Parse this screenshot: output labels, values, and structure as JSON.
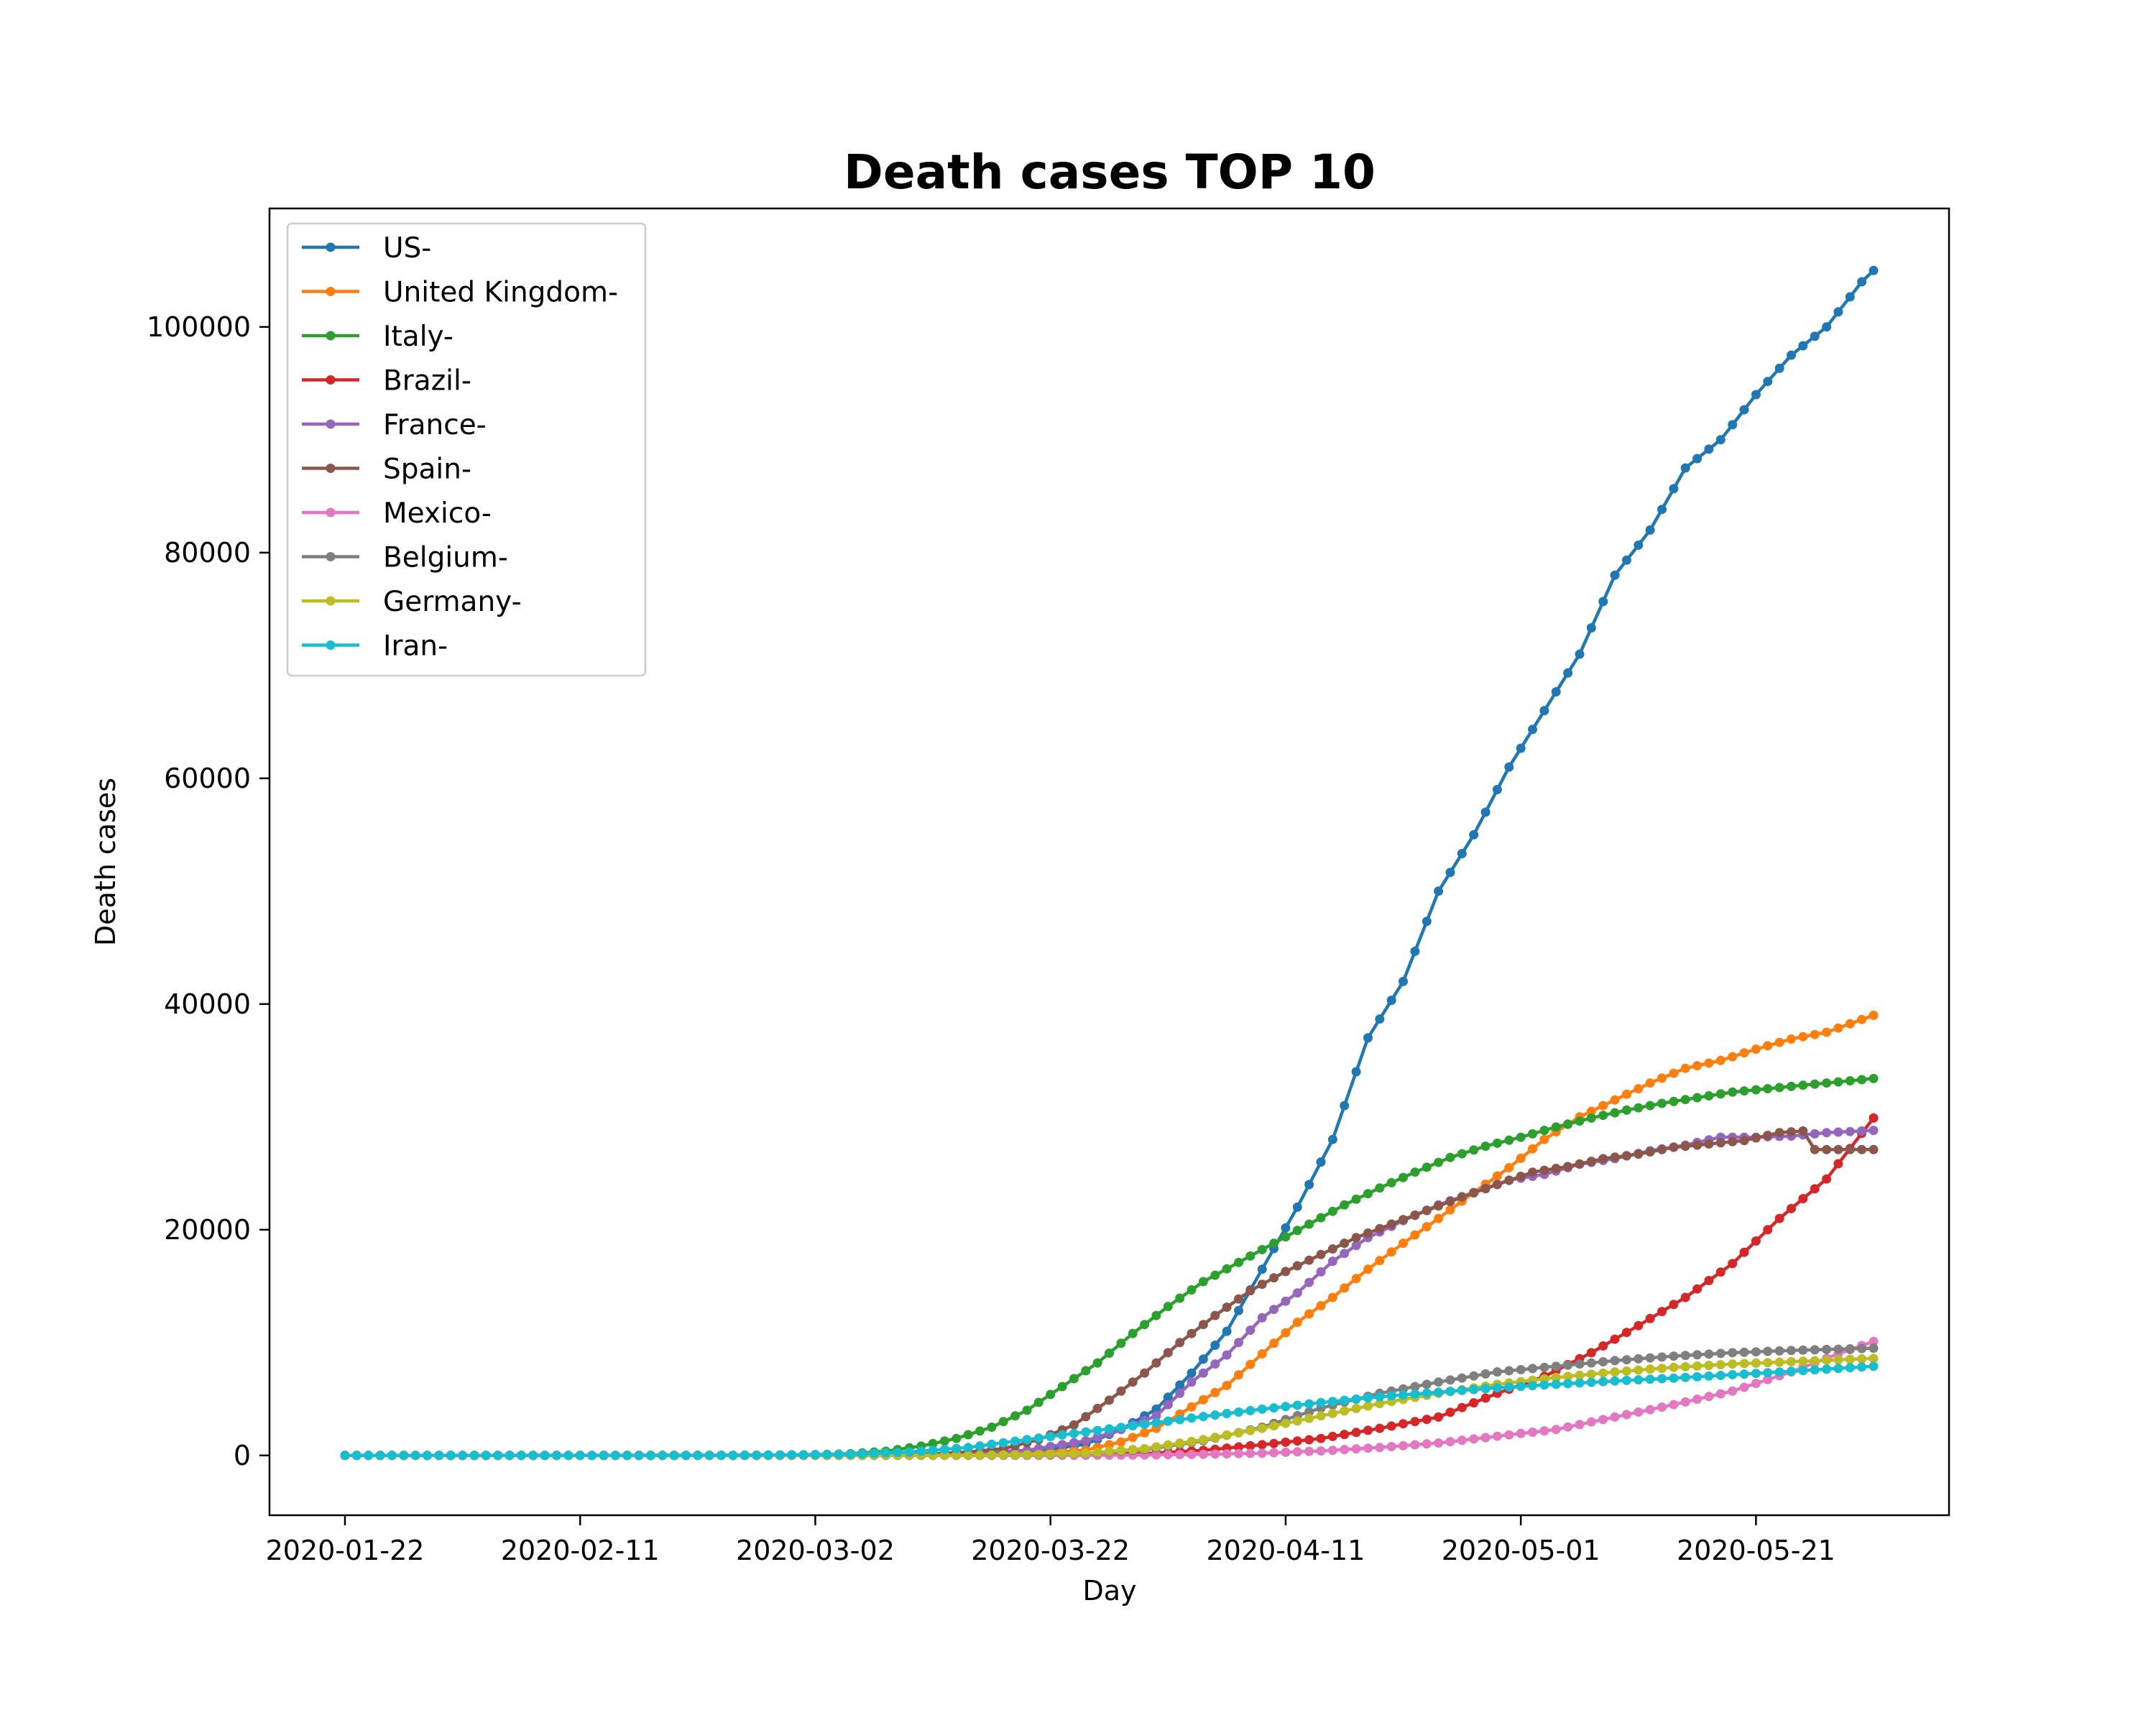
{
  "chart_data": {
    "type": "line",
    "title": "Death cases TOP 10",
    "xlabel": "Day",
    "ylabel": "Death cases",
    "x_start": "2020-01-22",
    "x_end": "2020-05-31",
    "x_ticks": [
      "2020-01-22",
      "2020-02-11",
      "2020-03-02",
      "2020-03-22",
      "2020-04-11",
      "2020-05-01",
      "2020-05-21"
    ],
    "y_ticks": [
      0,
      20000,
      40000,
      60000,
      80000,
      100000
    ],
    "ylim": [
      -5300,
      110500
    ],
    "grid": false,
    "legend_position": "top-left",
    "series": [
      {
        "name": "US-",
        "color": "#1f77b4",
        "points": [
          [
            "2020-01-22",
            0
          ],
          [
            "2020-03-01",
            1
          ],
          [
            "2020-03-10",
            30
          ],
          [
            "2020-03-20",
            250
          ],
          [
            "2020-03-25",
            1000
          ],
          [
            "2020-03-28",
            2300
          ],
          [
            "2020-03-31",
            4100
          ],
          [
            "2020-04-03",
            7300
          ],
          [
            "2020-04-06",
            11000
          ],
          [
            "2020-04-09",
            16500
          ],
          [
            "2020-04-12",
            22000
          ],
          [
            "2020-04-15",
            28000
          ],
          [
            "2020-04-18",
            37000
          ],
          [
            "2020-04-21",
            42000
          ],
          [
            "2020-04-24",
            50000
          ],
          [
            "2020-04-27",
            55000
          ],
          [
            "2020-04-30",
            61000
          ],
          [
            "2020-05-03",
            66000
          ],
          [
            "2020-05-06",
            71000
          ],
          [
            "2020-05-09",
            78000
          ],
          [
            "2020-05-12",
            82000
          ],
          [
            "2020-05-15",
            87500
          ],
          [
            "2020-05-18",
            90000
          ],
          [
            "2020-05-21",
            94000
          ],
          [
            "2020-05-24",
            97500
          ],
          [
            "2020-05-27",
            100000
          ],
          [
            "2020-05-30",
            104000
          ],
          [
            "2020-05-31",
            105000
          ]
        ]
      },
      {
        "name": "United Kingdom-",
        "color": "#ff7f0e",
        "points": [
          [
            "2020-01-22",
            0
          ],
          [
            "2020-03-10",
            5
          ],
          [
            "2020-03-20",
            170
          ],
          [
            "2020-03-25",
            470
          ],
          [
            "2020-03-28",
            1200
          ],
          [
            "2020-03-31",
            2400
          ],
          [
            "2020-04-03",
            4300
          ],
          [
            "2020-04-06",
            6200
          ],
          [
            "2020-04-09",
            9000
          ],
          [
            "2020-04-12",
            11800
          ],
          [
            "2020-04-15",
            14000
          ],
          [
            "2020-04-18",
            16500
          ],
          [
            "2020-04-21",
            18800
          ],
          [
            "2020-04-24",
            21000
          ],
          [
            "2020-04-27",
            23300
          ],
          [
            "2020-04-30",
            25500
          ],
          [
            "2020-05-03",
            28000
          ],
          [
            "2020-05-06",
            30000
          ],
          [
            "2020-05-09",
            31500
          ],
          [
            "2020-05-12",
            33000
          ],
          [
            "2020-05-15",
            34300
          ],
          [
            "2020-05-18",
            35000
          ],
          [
            "2020-05-21",
            36000
          ],
          [
            "2020-05-24",
            36900
          ],
          [
            "2020-05-27",
            37500
          ],
          [
            "2020-05-31",
            39000
          ]
        ]
      },
      {
        "name": "Italy-",
        "color": "#2ca02c",
        "points": [
          [
            "2020-01-22",
            0
          ],
          [
            "2020-02-22",
            1
          ],
          [
            "2020-03-01",
            40
          ],
          [
            "2020-03-05",
            150
          ],
          [
            "2020-03-08",
            370
          ],
          [
            "2020-03-11",
            830
          ],
          [
            "2020-03-14",
            1500
          ],
          [
            "2020-03-17",
            2500
          ],
          [
            "2020-03-20",
            4000
          ],
          [
            "2020-03-23",
            6100
          ],
          [
            "2020-03-26",
            8200
          ],
          [
            "2020-03-29",
            10800
          ],
          [
            "2020-04-01",
            13200
          ],
          [
            "2020-04-04",
            15400
          ],
          [
            "2020-04-07",
            17100
          ],
          [
            "2020-04-10",
            18800
          ],
          [
            "2020-04-13",
            20500
          ],
          [
            "2020-04-16",
            22200
          ],
          [
            "2020-04-19",
            23700
          ],
          [
            "2020-04-22",
            25100
          ],
          [
            "2020-04-25",
            26400
          ],
          [
            "2020-04-28",
            27400
          ],
          [
            "2020-05-01",
            28200
          ],
          [
            "2020-05-04",
            29100
          ],
          [
            "2020-05-07",
            29900
          ],
          [
            "2020-05-10",
            30600
          ],
          [
            "2020-05-13",
            31200
          ],
          [
            "2020-05-16",
            31700
          ],
          [
            "2020-05-19",
            32200
          ],
          [
            "2020-05-22",
            32500
          ],
          [
            "2020-05-25",
            32800
          ],
          [
            "2020-05-28",
            33100
          ],
          [
            "2020-05-31",
            33400
          ]
        ]
      },
      {
        "name": "Brazil-",
        "color": "#d62728",
        "points": [
          [
            "2020-01-22",
            0
          ],
          [
            "2020-03-20",
            10
          ],
          [
            "2020-03-25",
            60
          ],
          [
            "2020-03-30",
            160
          ],
          [
            "2020-04-04",
            450
          ],
          [
            "2020-04-09",
            950
          ],
          [
            "2020-04-14",
            1500
          ],
          [
            "2020-04-19",
            2400
          ],
          [
            "2020-04-24",
            3400
          ],
          [
            "2020-04-29",
            5500
          ],
          [
            "2020-05-03",
            7000
          ],
          [
            "2020-05-07",
            9100
          ],
          [
            "2020-05-11",
            11500
          ],
          [
            "2020-05-15",
            14000
          ],
          [
            "2020-05-19",
            17000
          ],
          [
            "2020-05-23",
            21000
          ],
          [
            "2020-05-27",
            24500
          ],
          [
            "2020-05-31",
            29900
          ]
        ]
      },
      {
        "name": "France-",
        "color": "#9467bd",
        "points": [
          [
            "2020-01-22",
            0
          ],
          [
            "2020-03-10",
            30
          ],
          [
            "2020-03-20",
            450
          ],
          [
            "2020-03-25",
            1300
          ],
          [
            "2020-03-28",
            2300
          ],
          [
            "2020-03-31",
            3500
          ],
          [
            "2020-04-03",
            6500
          ],
          [
            "2020-04-06",
            8900
          ],
          [
            "2020-04-09",
            12200
          ],
          [
            "2020-04-12",
            14400
          ],
          [
            "2020-04-15",
            17200
          ],
          [
            "2020-04-18",
            19300
          ],
          [
            "2020-04-21",
            20800
          ],
          [
            "2020-04-24",
            22200
          ],
          [
            "2020-04-27",
            23300
          ],
          [
            "2020-04-30",
            24400
          ],
          [
            "2020-05-03",
            24900
          ],
          [
            "2020-05-06",
            25800
          ],
          [
            "2020-05-09",
            26300
          ],
          [
            "2020-05-12",
            27000
          ],
          [
            "2020-05-15",
            27500
          ],
          [
            "2020-05-18",
            28200
          ],
          [
            "2020-05-21",
            28200
          ],
          [
            "2020-05-24",
            28300
          ],
          [
            "2020-05-27",
            28600
          ],
          [
            "2020-05-31",
            28800
          ]
        ]
      },
      {
        "name": "Spain-",
        "color": "#8c564b",
        "points": [
          [
            "2020-01-22",
            0
          ],
          [
            "2020-03-05",
            3
          ],
          [
            "2020-03-10",
            35
          ],
          [
            "2020-03-15",
            300
          ],
          [
            "2020-03-18",
            600
          ],
          [
            "2020-03-21",
            1400
          ],
          [
            "2020-03-24",
            2700
          ],
          [
            "2020-03-27",
            4900
          ],
          [
            "2020-03-30",
            7300
          ],
          [
            "2020-04-02",
            10000
          ],
          [
            "2020-04-05",
            12400
          ],
          [
            "2020-04-08",
            14600
          ],
          [
            "2020-04-11",
            16300
          ],
          [
            "2020-04-14",
            17800
          ],
          [
            "2020-04-17",
            19300
          ],
          [
            "2020-04-20",
            20500
          ],
          [
            "2020-04-23",
            21700
          ],
          [
            "2020-04-26",
            22900
          ],
          [
            "2020-04-29",
            24000
          ],
          [
            "2020-05-02",
            25100
          ],
          [
            "2020-05-05",
            25600
          ],
          [
            "2020-05-08",
            26300
          ],
          [
            "2020-05-11",
            26700
          ],
          [
            "2020-05-14",
            27300
          ],
          [
            "2020-05-17",
            27600
          ],
          [
            "2020-05-20",
            27900
          ],
          [
            "2020-05-23",
            28600
          ],
          [
            "2020-05-25",
            28750
          ],
          [
            "2020-05-26",
            27100
          ],
          [
            "2020-05-31",
            27100
          ]
        ]
      },
      {
        "name": "Mexico-",
        "color": "#e377c2",
        "points": [
          [
            "2020-01-22",
            0
          ],
          [
            "2020-03-25",
            10
          ],
          [
            "2020-03-30",
            40
          ],
          [
            "2020-04-04",
            100
          ],
          [
            "2020-04-09",
            200
          ],
          [
            "2020-04-14",
            400
          ],
          [
            "2020-04-19",
            700
          ],
          [
            "2020-04-24",
            1100
          ],
          [
            "2020-04-29",
            1700
          ],
          [
            "2020-05-04",
            2300
          ],
          [
            "2020-05-09",
            3400
          ],
          [
            "2020-05-14",
            4500
          ],
          [
            "2020-05-19",
            5700
          ],
          [
            "2020-05-24",
            7400
          ],
          [
            "2020-05-28",
            9000
          ],
          [
            "2020-05-31",
            10100
          ]
        ]
      },
      {
        "name": "Belgium-",
        "color": "#7f7f7f",
        "points": [
          [
            "2020-01-22",
            0
          ],
          [
            "2020-03-15",
            5
          ],
          [
            "2020-03-20",
            40
          ],
          [
            "2020-03-25",
            180
          ],
          [
            "2020-03-30",
            500
          ],
          [
            "2020-04-04",
            1300
          ],
          [
            "2020-04-09",
            2500
          ],
          [
            "2020-04-14",
            4200
          ],
          [
            "2020-04-19",
            5500
          ],
          [
            "2020-04-24",
            6500
          ],
          [
            "2020-04-29",
            7400
          ],
          [
            "2020-05-04",
            7900
          ],
          [
            "2020-05-09",
            8400
          ],
          [
            "2020-05-14",
            8800
          ],
          [
            "2020-05-19",
            9100
          ],
          [
            "2020-05-24",
            9300
          ],
          [
            "2020-05-31",
            9500
          ]
        ]
      },
      {
        "name": "Germany-",
        "color": "#bcbd22",
        "points": [
          [
            "2020-01-22",
            0
          ],
          [
            "2020-03-15",
            20
          ],
          [
            "2020-03-20",
            70
          ],
          [
            "2020-03-25",
            200
          ],
          [
            "2020-03-30",
            600
          ],
          [
            "2020-04-04",
            1400
          ],
          [
            "2020-04-09",
            2400
          ],
          [
            "2020-04-14",
            3500
          ],
          [
            "2020-04-19",
            4600
          ],
          [
            "2020-04-24",
            5500
          ],
          [
            "2020-04-29",
            6300
          ],
          [
            "2020-05-04",
            6900
          ],
          [
            "2020-05-09",
            7400
          ],
          [
            "2020-05-14",
            7800
          ],
          [
            "2020-05-19",
            8100
          ],
          [
            "2020-05-24",
            8300
          ],
          [
            "2020-05-31",
            8600
          ]
        ]
      },
      {
        "name": "Iran-",
        "color": "#17becf",
        "points": [
          [
            "2020-01-22",
            0
          ],
          [
            "2020-02-20",
            2
          ],
          [
            "2020-02-25",
            16
          ],
          [
            "2020-03-01",
            66
          ],
          [
            "2020-03-05",
            110
          ],
          [
            "2020-03-10",
            300
          ],
          [
            "2020-03-15",
            700
          ],
          [
            "2020-03-20",
            1400
          ],
          [
            "2020-03-25",
            2080
          ],
          [
            "2020-03-30",
            2760
          ],
          [
            "2020-04-04",
            3450
          ],
          [
            "2020-04-09",
            4100
          ],
          [
            "2020-04-14",
            4680
          ],
          [
            "2020-04-19",
            5200
          ],
          [
            "2020-04-24",
            5600
          ],
          [
            "2020-04-29",
            6000
          ],
          [
            "2020-05-04",
            6300
          ],
          [
            "2020-05-09",
            6600
          ],
          [
            "2020-05-14",
            6850
          ],
          [
            "2020-05-19",
            7150
          ],
          [
            "2020-05-24",
            7450
          ],
          [
            "2020-05-31",
            7900
          ]
        ]
      }
    ]
  }
}
